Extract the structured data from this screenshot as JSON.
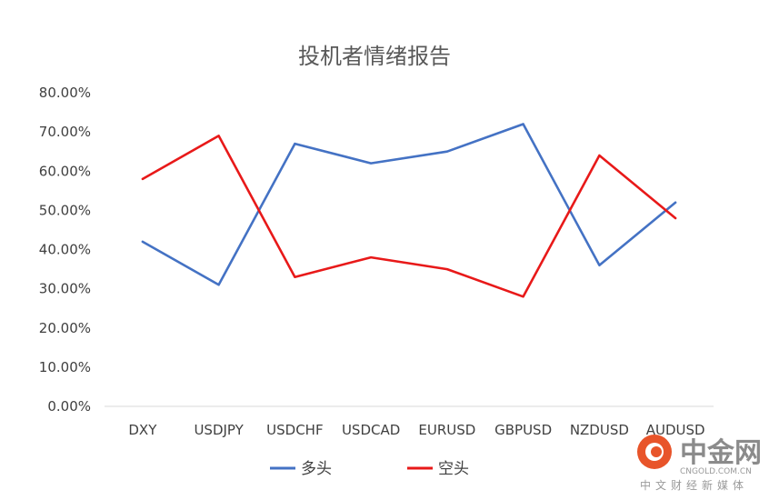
{
  "chart_data": {
    "type": "line",
    "title": "投机者情绪报告",
    "categories": [
      "DXY",
      "USDJPY",
      "USDCHF",
      "USDCAD",
      "EURUSD",
      "GBPUSD",
      "NZDUSD",
      "AUDUSD"
    ],
    "series": [
      {
        "name": "多头",
        "color": "#4472C4",
        "values": [
          42,
          31,
          67,
          62,
          65,
          72,
          36,
          52
        ]
      },
      {
        "name": "空头",
        "color": "#E81919",
        "values": [
          58,
          69,
          33,
          38,
          35,
          28,
          64,
          48
        ]
      }
    ],
    "ylim": [
      0,
      80
    ],
    "yticks": [
      "0.00%",
      "10.00%",
      "20.00%",
      "30.00%",
      "40.00%",
      "50.00%",
      "60.00%",
      "70.00%",
      "80.00%"
    ],
    "gridlines": false,
    "legend": "bottom"
  },
  "watermark": {
    "brand": "中金网",
    "domain": "CNGOLD.COM.CN",
    "slogan": "中文财经新媒体",
    "logo_color": "#E8542A"
  }
}
